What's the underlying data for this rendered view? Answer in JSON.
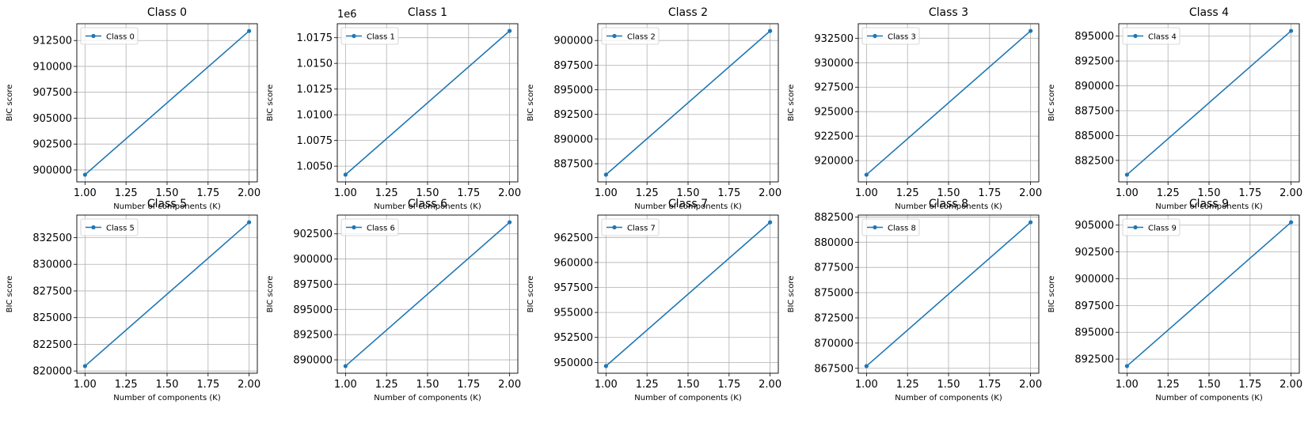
{
  "chart_data": [
    {
      "type": "line",
      "title": "Class 0",
      "xlabel": "Number of components (K)",
      "ylabel": "BIC score",
      "legend": "top-left",
      "grid": true,
      "offset_label": "",
      "x": [
        1.0,
        2.0
      ],
      "xlim": [
        0.95,
        2.05
      ],
      "xticks": [
        "1.00",
        "1.25",
        "1.50",
        "1.75",
        "2.00"
      ],
      "series": [
        {
          "name": "Class 0",
          "color": "#1f77b4",
          "values": [
            899540,
            913420
          ]
        }
      ],
      "ylim": [
        898850,
        914120
      ],
      "yticks": [
        900000,
        902500,
        905000,
        907500,
        910000,
        912500
      ],
      "ytick_labels": [
        "900000",
        "902500",
        "905000",
        "907500",
        "910000",
        "912500"
      ]
    },
    {
      "type": "line",
      "title": "Class 1",
      "xlabel": "Number of components (K)",
      "ylabel": "BIC score",
      "legend": "top-left",
      "grid": true,
      "offset_label": "1e6",
      "x": [
        1.0,
        2.0
      ],
      "xlim": [
        0.95,
        2.05
      ],
      "xticks": [
        "1.00",
        "1.25",
        "1.50",
        "1.75",
        "2.00"
      ],
      "series": [
        {
          "name": "Class 1",
          "color": "#1f77b4",
          "values": [
            1004170,
            1018160
          ]
        }
      ],
      "ylim": [
        1003470,
        1018860
      ],
      "yticks": [
        1005000,
        1007500,
        1010000,
        1012500,
        1015000,
        1017500
      ],
      "ytick_labels": [
        "1.0050",
        "1.0075",
        "1.0100",
        "1.0125",
        "1.0150",
        "1.0175"
      ]
    },
    {
      "type": "line",
      "title": "Class 2",
      "xlabel": "Number of components (K)",
      "ylabel": "BIC score",
      "legend": "top-left",
      "grid": true,
      "offset_label": "",
      "x": [
        1.0,
        2.0
      ],
      "xlim": [
        0.95,
        2.05
      ],
      "xticks": [
        "1.00",
        "1.25",
        "1.50",
        "1.75",
        "2.00"
      ],
      "series": [
        {
          "name": "Class 2",
          "color": "#1f77b4",
          "values": [
            886390,
            900970
          ]
        }
      ],
      "ylim": [
        885660,
        901700
      ],
      "yticks": [
        887500,
        890000,
        892500,
        895000,
        897500,
        900000
      ],
      "ytick_labels": [
        "887500",
        "890000",
        "892500",
        "895000",
        "897500",
        "900000"
      ]
    },
    {
      "type": "line",
      "title": "Class 3",
      "xlabel": "Number of components (K)",
      "ylabel": "BIC score",
      "legend": "top-left",
      "grid": true,
      "offset_label": "",
      "x": [
        1.0,
        2.0
      ],
      "xlim": [
        0.95,
        2.05
      ],
      "xticks": [
        "1.00",
        "1.25",
        "1.50",
        "1.75",
        "2.00"
      ],
      "series": [
        {
          "name": "Class 3",
          "color": "#1f77b4",
          "values": [
            918560,
            933250
          ]
        }
      ],
      "ylim": [
        917830,
        933980
      ],
      "yticks": [
        920000,
        922500,
        925000,
        927500,
        930000,
        932500
      ],
      "ytick_labels": [
        "920000",
        "922500",
        "925000",
        "927500",
        "930000",
        "932500"
      ]
    },
    {
      "type": "line",
      "title": "Class 4",
      "xlabel": "Number of components (K)",
      "ylabel": "BIC score",
      "legend": "top-left",
      "grid": true,
      "offset_label": "",
      "x": [
        1.0,
        2.0
      ],
      "xlim": [
        0.95,
        2.05
      ],
      "xticks": [
        "1.00",
        "1.25",
        "1.50",
        "1.75",
        "2.00"
      ],
      "series": [
        {
          "name": "Class 4",
          "color": "#1f77b4",
          "values": [
            881060,
            895530
          ]
        }
      ],
      "ylim": [
        880340,
        896250
      ],
      "yticks": [
        882500,
        885000,
        887500,
        890000,
        892500,
        895000
      ],
      "ytick_labels": [
        "882500",
        "885000",
        "887500",
        "890000",
        "892500",
        "895000"
      ]
    },
    {
      "type": "line",
      "title": "Class 5",
      "xlabel": "Number of components (K)",
      "ylabel": "BIC score",
      "legend": "top-left",
      "grid": true,
      "offset_label": "",
      "x": [
        1.0,
        2.0
      ],
      "xlim": [
        0.95,
        2.05
      ],
      "xticks": [
        "1.00",
        "1.25",
        "1.50",
        "1.75",
        "2.00"
      ],
      "series": [
        {
          "name": "Class 5",
          "color": "#1f77b4",
          "values": [
            820460,
            833940
          ]
        }
      ],
      "ylim": [
        819790,
        834610
      ],
      "yticks": [
        820000,
        822500,
        825000,
        827500,
        830000,
        832500
      ],
      "ytick_labels": [
        "820000",
        "822500",
        "825000",
        "827500",
        "830000",
        "832500"
      ]
    },
    {
      "type": "line",
      "title": "Class 6",
      "xlabel": "Number of components (K)",
      "ylabel": "BIC score",
      "legend": "top-left",
      "grid": true,
      "offset_label": "",
      "x": [
        1.0,
        2.0
      ],
      "xlim": [
        0.95,
        2.05
      ],
      "xticks": [
        "1.00",
        "1.25",
        "1.50",
        "1.75",
        "2.00"
      ],
      "series": [
        {
          "name": "Class 6",
          "color": "#1f77b4",
          "values": [
            889380,
            903650
          ]
        }
      ],
      "ylim": [
        888670,
        904360
      ],
      "yticks": [
        890000,
        892500,
        895000,
        897500,
        900000,
        902500
      ],
      "ytick_labels": [
        "890000",
        "892500",
        "895000",
        "897500",
        "900000",
        "902500"
      ]
    },
    {
      "type": "line",
      "title": "Class 7",
      "xlabel": "Number of components (K)",
      "ylabel": "BIC score",
      "legend": "top-left",
      "grid": true,
      "offset_label": "",
      "x": [
        1.0,
        2.0
      ],
      "xlim": [
        0.95,
        2.05
      ],
      "xticks": [
        "1.00",
        "1.25",
        "1.50",
        "1.75",
        "2.00"
      ],
      "series": [
        {
          "name": "Class 7",
          "color": "#1f77b4",
          "values": [
            949640,
            964020
          ]
        }
      ],
      "ylim": [
        948920,
        964740
      ],
      "yticks": [
        950000,
        952500,
        955000,
        957500,
        960000,
        962500
      ],
      "ytick_labels": [
        "950000",
        "952500",
        "955000",
        "957500",
        "960000",
        "962500"
      ]
    },
    {
      "type": "line",
      "title": "Class 8",
      "xlabel": "Number of components (K)",
      "ylabel": "BIC score",
      "legend": "top-left",
      "grid": true,
      "offset_label": "",
      "x": [
        1.0,
        2.0
      ],
      "xlim": [
        0.95,
        2.05
      ],
      "xticks": [
        "1.00",
        "1.25",
        "1.50",
        "1.75",
        "2.00"
      ],
      "series": [
        {
          "name": "Class 8",
          "color": "#1f77b4",
          "values": [
            867720,
            881980
          ]
        }
      ],
      "ylim": [
        867010,
        882690
      ],
      "yticks": [
        867500,
        870000,
        872500,
        875000,
        877500,
        880000,
        882500
      ],
      "ytick_labels": [
        "867500",
        "870000",
        "872500",
        "875000",
        "877500",
        "880000",
        "882500"
      ]
    },
    {
      "type": "line",
      "title": "Class 9",
      "xlabel": "Number of components (K)",
      "ylabel": "BIC score",
      "legend": "top-left",
      "grid": true,
      "offset_label": "",
      "x": [
        1.0,
        2.0
      ],
      "xlim": [
        0.95,
        2.05
      ],
      "xticks": [
        "1.00",
        "1.25",
        "1.50",
        "1.75",
        "2.00"
      ],
      "series": [
        {
          "name": "Class 9",
          "color": "#1f77b4",
          "values": [
            891850,
            905270
          ]
        }
      ],
      "ylim": [
        891180,
        905940
      ],
      "yticks": [
        892500,
        895000,
        897500,
        900000,
        902500,
        905000
      ],
      "ytick_labels": [
        "892500",
        "895000",
        "897500",
        "900000",
        "902500",
        "905000"
      ]
    }
  ]
}
